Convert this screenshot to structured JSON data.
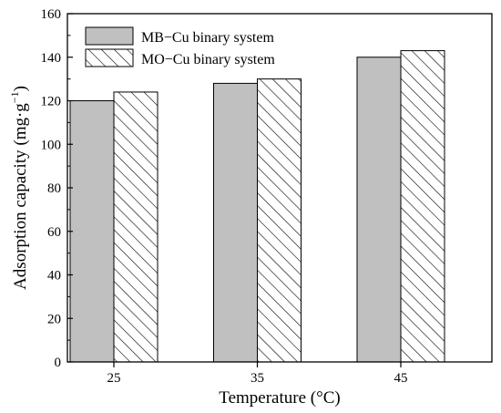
{
  "chart_data": {
    "type": "bar",
    "categories": [
      "25",
      "35",
      "45"
    ],
    "series": [
      {
        "name": "MB−Cu binary system",
        "values": [
          120,
          128,
          140
        ],
        "fill": "#c0c0c0",
        "pattern": "solid"
      },
      {
        "name": "MO−Cu binary system",
        "values": [
          124,
          130,
          143
        ],
        "fill": "#ffffff",
        "pattern": "diagonal-hatch"
      }
    ],
    "xlabel": "Temperature (°C)",
    "ylabel_main": "Adsorption capacity (mg·g",
    "ylabel_sup": "−1",
    "ylabel_end": ")",
    "ylim": [
      0,
      160
    ],
    "yticks": [
      0,
      20,
      40,
      60,
      80,
      100,
      120,
      140,
      160
    ],
    "legend_position": "top-left",
    "grid": false,
    "colors": {
      "axis": "#000000",
      "bar_stroke": "#000000"
    }
  }
}
